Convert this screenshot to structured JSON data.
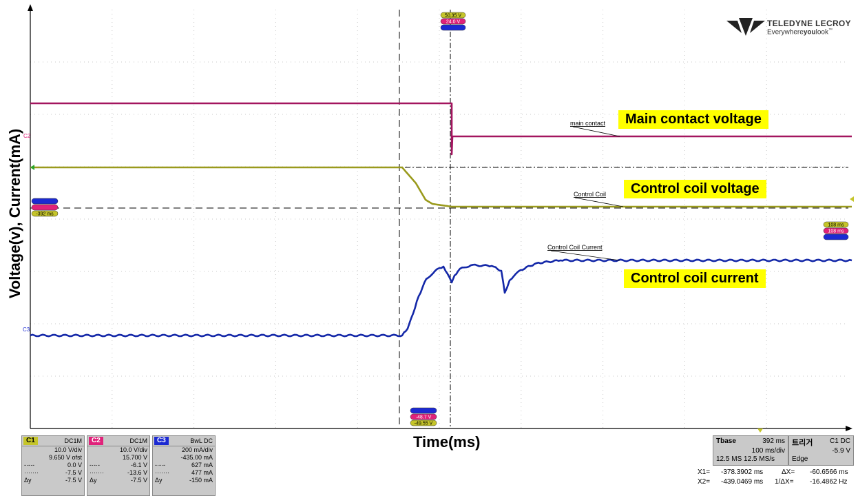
{
  "chart_data": {
    "type": "line",
    "title": "",
    "xlabel": "Time(ms)",
    "ylabel": "Voltage(v), Current(mA)",
    "grid": true,
    "series": [
      {
        "name": "Main contact voltage",
        "trace_label": "main contact",
        "channel": "C2",
        "color": "#a3155f",
        "points": [
          [
            0,
            150
          ],
          [
            610,
            150
          ],
          [
            612,
            150
          ],
          [
            612,
            224
          ],
          [
            613,
            198
          ],
          [
            1193,
            198
          ]
        ]
      },
      {
        "name": "Control coil voltage",
        "trace_label": "Control Coil",
        "channel": "C1",
        "color": "#9a9a1c",
        "points": [
          [
            0,
            243
          ],
          [
            540,
            243
          ],
          [
            560,
            266
          ],
          [
            574,
            290
          ],
          [
            584,
            296
          ],
          [
            612,
            300
          ],
          [
            1193,
            300
          ]
        ]
      },
      {
        "name": "Control coil current",
        "trace_label": "Control Coil Current",
        "channel": "C3",
        "color": "#1428a8",
        "points": [
          [
            0,
            487
          ],
          [
            540,
            487
          ],
          [
            548,
            477
          ],
          [
            556,
            455
          ],
          [
            564,
            430
          ],
          [
            575,
            405
          ],
          [
            588,
            393
          ],
          [
            600,
            387
          ],
          [
            612,
            410
          ],
          [
            616,
            400
          ],
          [
            624,
            390
          ],
          [
            640,
            385
          ],
          [
            670,
            386
          ],
          [
            684,
            393
          ],
          [
            689,
            425
          ],
          [
            696,
            407
          ],
          [
            712,
            392
          ],
          [
            735,
            382
          ],
          [
            770,
            378
          ],
          [
            1193,
            378
          ]
        ]
      }
    ],
    "annotations": [
      "Main contact voltage",
      "Control coil voltage",
      "Control coil current"
    ],
    "markers": {
      "top_readouts": [
        "50.35 V",
        "24.0 V",
        ""
      ],
      "left_readouts": [
        "",
        "",
        "-392 ms"
      ],
      "bottom_readouts": [
        "",
        "-48.7 V",
        "-49.55 V"
      ],
      "right_readouts": [
        "108 ms",
        "108 ms",
        ""
      ]
    }
  },
  "colors": {
    "c1": "#c5c52a",
    "c2": "#e0227a",
    "c3": "#1c2ad2",
    "grid": "#c8c8c8",
    "label_bg": "#ffff00"
  },
  "logo": {
    "line1": "TELEDYNE LECROY",
    "line2_pre": "Everywhere",
    "line2_bold": "you",
    "line2_post": "look",
    "tm": "™"
  },
  "channels": [
    {
      "tag": "C1",
      "coupling": "DC1M",
      "vdiv": "10.0 V/div",
      "offset": "9.650 V ofst",
      "rows": [
        [
          "-·-·-",
          "0.0 V"
        ],
        [
          "·······",
          "-7.5 V"
        ],
        [
          "Δy",
          "-7.5 V"
        ]
      ]
    },
    {
      "tag": "C2",
      "coupling": "DC1M",
      "vdiv": "10.0 V/div",
      "offset": "15.700 V",
      "rows": [
        [
          "-·-·-",
          "-6.1 V"
        ],
        [
          "·······",
          "-13.6 V"
        ],
        [
          "Δy",
          "-7.5 V"
        ]
      ]
    },
    {
      "tag": "C3",
      "coupling": "BwL DC",
      "vdiv": "200 mA/div",
      "offset": "-435.00 mA",
      "rows": [
        [
          "-·-·-",
          "627 mA"
        ],
        [
          "·······",
          "477 mA"
        ],
        [
          "Δy",
          "-150 mA"
        ]
      ]
    }
  ],
  "timebase": {
    "label": "Tbase",
    "value": "392 ms",
    "div": "100 ms/div",
    "rate": "12.5 MS  12.5 MS/s"
  },
  "trigger": {
    "label": "트리거",
    "source": "C1 DC",
    "level": "-5.9 V",
    "mode": "Edge"
  },
  "measurements": {
    "x1_label": "X1=",
    "x1": "-378.3902 ms",
    "dx_label": "ΔX=",
    "dx": "-60.6566 ms",
    "x2_label": "X2=",
    "x2": "-439.0469 ms",
    "inv_label": "1/ΔX=",
    "inv": "-16.4862 Hz"
  }
}
